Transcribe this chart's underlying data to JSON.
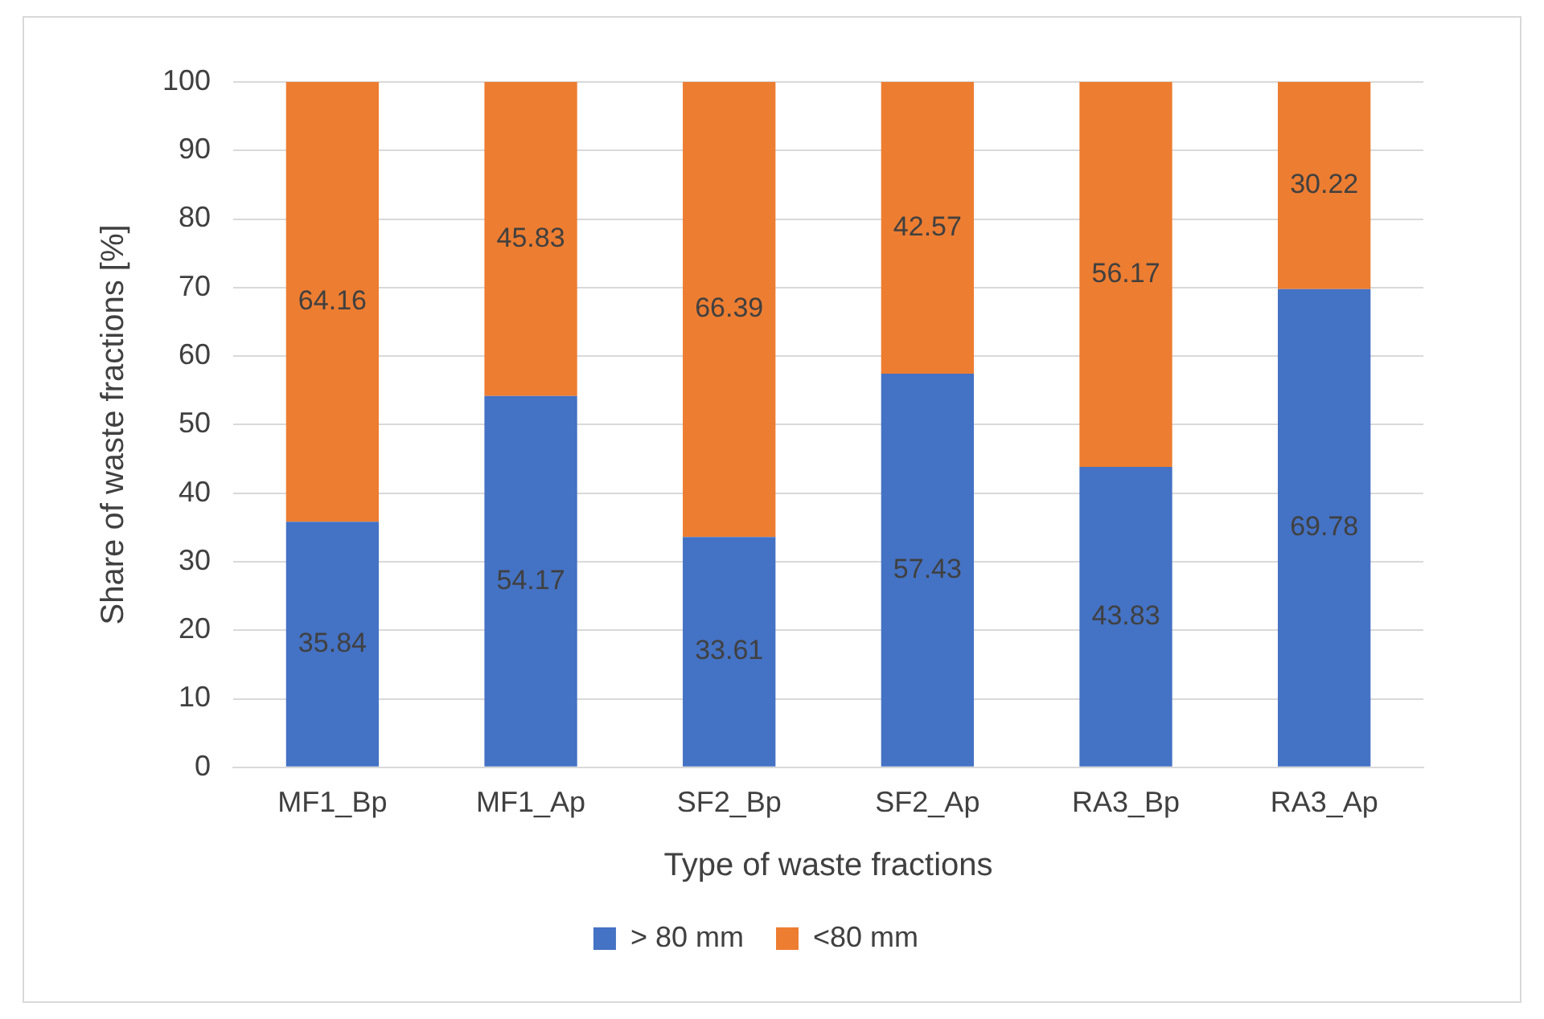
{
  "chart_data": {
    "type": "bar",
    "stacked": true,
    "xlabel": "Type of waste fractions",
    "ylabel": "Share of waste fractions [%]",
    "categories": [
      "MF1_Bp",
      "MF1_Ap",
      "SF2_Bp",
      "SF2_Ap",
      "RA3_Bp",
      "RA3_Ap"
    ],
    "series": [
      {
        "name": "> 80 mm",
        "color": "#4472c4",
        "values": [
          35.84,
          54.17,
          33.61,
          57.43,
          43.83,
          69.78
        ]
      },
      {
        "name": "<80 mm",
        "color": "#ed7d31",
        "values": [
          64.16,
          45.83,
          66.39,
          42.57,
          56.17,
          30.22
        ]
      }
    ],
    "ylim": [
      0,
      100
    ],
    "yticks": [
      0,
      10,
      20,
      30,
      40,
      50,
      60,
      70,
      80,
      90,
      100
    ],
    "grid": "y",
    "legend": "bottom",
    "data_labels": true
  }
}
